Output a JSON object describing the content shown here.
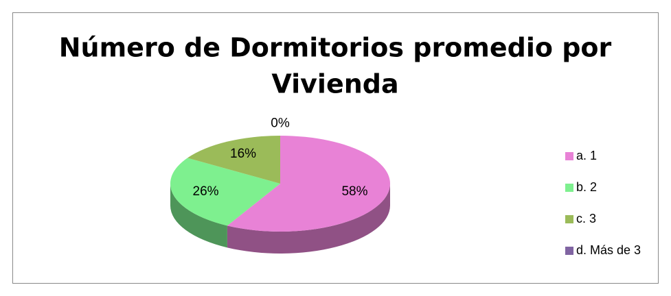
{
  "chart_data": {
    "type": "pie",
    "title": [
      "Número de Dormitorios promedio por",
      "Vivienda"
    ],
    "categories": [
      "a. 1",
      "b. 2",
      "c. 3",
      "d. Más de 3"
    ],
    "values": [
      58,
      26,
      16,
      0
    ],
    "value_labels": [
      "58%",
      "26%",
      "16%",
      "0%"
    ],
    "colors": [
      "#e882d6",
      "#7ef08f",
      "#9bbb59",
      "#8064a2"
    ],
    "legend": "right"
  }
}
